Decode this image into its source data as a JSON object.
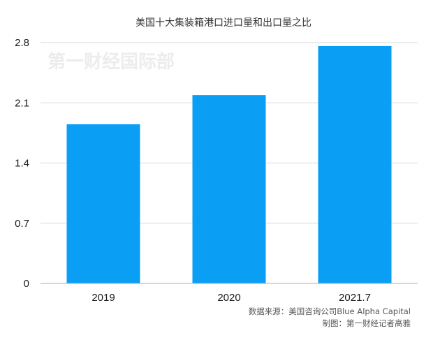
{
  "chart_data": {
    "type": "bar",
    "title": "美国十大集装箱港口进口量和出口量之比",
    "categories": [
      "2019",
      "2020",
      "2021.7"
    ],
    "values": [
      1.85,
      2.19,
      2.76
    ],
    "ylim": [
      0,
      2.8
    ],
    "yticks": [
      "0",
      "0.7",
      "1.4",
      "2.1",
      "2.8"
    ],
    "ytick_values": [
      0,
      0.7,
      1.4,
      2.1,
      2.8
    ],
    "xlabel": "",
    "ylabel": "",
    "grid": true,
    "bar_color": "#0a9ef5"
  },
  "watermark": "第一财经国际部",
  "source_note": "数据来源：美国咨询公司Blue Alpha Capital",
  "author_note": "制图：第一财经记者高雅"
}
